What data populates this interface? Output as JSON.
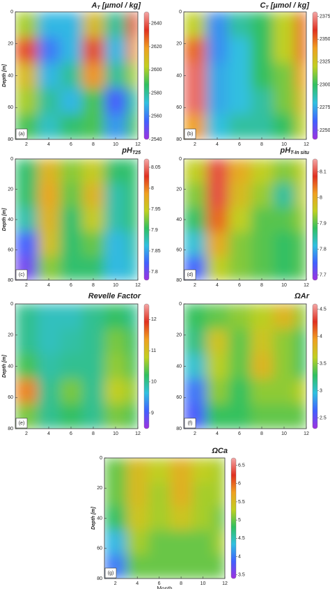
{
  "colormap": [
    "#a030e0",
    "#4060ff",
    "#30c0e0",
    "#30c060",
    "#c0d020",
    "#f0a020",
    "#e03020",
    "#f4a8a8"
  ],
  "chart_data": [
    {
      "type": "contour",
      "title": "A",
      "title_sub": "T",
      "title_rest": " [µmol / kg]",
      "panel_label": "(a)",
      "ylabel": "Depth [m]",
      "xlim": [
        1,
        12
      ],
      "xticks": [
        2,
        4,
        6,
        8,
        10,
        12
      ],
      "ylim": [
        0,
        80
      ],
      "yticks": [
        0,
        20,
        40,
        60,
        80
      ],
      "y_reversed": true,
      "x_edges": [
        1,
        3,
        5,
        7,
        9,
        11,
        12
      ],
      "y_edges": [
        0,
        16,
        32,
        48,
        64,
        80
      ],
      "z": [
        [
          2600,
          2570,
          2570,
          2610,
          2580,
          2630
        ],
        [
          2630,
          2560,
          2570,
          2630,
          2570,
          2620
        ],
        [
          2610,
          2570,
          2580,
          2620,
          2580,
          2600
        ],
        [
          2600,
          2580,
          2570,
          2590,
          2555,
          2580
        ],
        [
          2590,
          2575,
          2585,
          2590,
          2565,
          2590
        ]
      ],
      "colorbar_lim": [
        2540,
        2650
      ],
      "colorbar_ticks": [
        2540,
        2560,
        2580,
        2600,
        2620,
        2640
      ]
    },
    {
      "type": "contour",
      "title": "C",
      "title_sub": "T",
      "title_rest": " [µmol / kg]",
      "panel_label": "(b)",
      "xlim": [
        1,
        12
      ],
      "xticks": [
        2,
        4,
        6,
        8,
        10,
        12
      ],
      "ylim": [
        0,
        80
      ],
      "yticks": [
        0,
        20,
        40,
        60,
        80
      ],
      "y_reversed": true,
      "x_edges": [
        1,
        3,
        5,
        7,
        9,
        11,
        12
      ],
      "y_edges": [
        0,
        16,
        32,
        48,
        64,
        80
      ],
      "z": [
        [
          2320,
          2270,
          2290,
          2300,
          2320,
          2350
        ],
        [
          2350,
          2270,
          2280,
          2300,
          2320,
          2350
        ],
        [
          2370,
          2275,
          2280,
          2300,
          2310,
          2340
        ],
        [
          2370,
          2275,
          2280,
          2290,
          2310,
          2330
        ],
        [
          2340,
          2280,
          2290,
          2290,
          2300,
          2320
        ]
      ],
      "colorbar_lim": [
        2240,
        2380
      ],
      "colorbar_ticks": [
        2250,
        2275,
        2300,
        2325,
        2350,
        2375
      ]
    },
    {
      "type": "contour",
      "title": "pH",
      "title_sub": "T25",
      "panel_label": "(c)",
      "ylabel": "Depth [m]",
      "xlim": [
        1,
        12
      ],
      "xticks": [
        2,
        4,
        6,
        8,
        10,
        12
      ],
      "ylim": [
        0,
        80
      ],
      "yticks": [
        0,
        20,
        40,
        60,
        80
      ],
      "y_reversed": true,
      "x_edges": [
        1,
        3,
        5,
        7,
        9,
        11,
        12
      ],
      "y_edges": [
        0,
        16,
        32,
        48,
        64,
        80
      ],
      "z": [
        [
          7.9,
          7.97,
          7.93,
          7.95,
          7.9,
          7.9
        ],
        [
          7.9,
          7.98,
          7.92,
          7.97,
          7.88,
          7.9
        ],
        [
          7.88,
          7.97,
          7.9,
          7.95,
          7.88,
          7.9
        ],
        [
          7.82,
          7.96,
          7.9,
          7.92,
          7.86,
          7.88
        ],
        [
          7.8,
          7.93,
          7.9,
          7.9,
          7.86,
          7.87
        ]
      ],
      "colorbar_lim": [
        7.78,
        8.07
      ],
      "colorbar_ticks": [
        7.8,
        7.85,
        7.9,
        7.95,
        8,
        8.05
      ]
    },
    {
      "type": "contour",
      "title": "pH",
      "title_sub": "T-In situ",
      "panel_label": "(d)",
      "xlim": [
        1,
        12
      ],
      "xticks": [
        2,
        4,
        6,
        8,
        10,
        12
      ],
      "ylim": [
        0,
        80
      ],
      "yticks": [
        0,
        20,
        40,
        60,
        80
      ],
      "y_reversed": true,
      "x_edges": [
        1,
        3,
        5,
        7,
        9,
        11,
        12
      ],
      "y_edges": [
        0,
        16,
        32,
        48,
        64,
        80
      ],
      "z": [
        [
          7.95,
          8.1,
          8.0,
          7.95,
          7.92,
          7.95
        ],
        [
          7.92,
          8.1,
          7.98,
          7.93,
          7.85,
          7.95
        ],
        [
          7.88,
          8.05,
          7.95,
          7.9,
          7.9,
          7.93
        ],
        [
          7.82,
          8.0,
          7.92,
          7.9,
          7.88,
          7.9
        ],
        [
          7.75,
          7.95,
          7.92,
          7.9,
          7.88,
          7.9
        ]
      ],
      "colorbar_lim": [
        7.68,
        8.15
      ],
      "colorbar_ticks": [
        7.7,
        7.8,
        7.9,
        8,
        8.1
      ]
    },
    {
      "type": "contour",
      "title": "Revelle Factor",
      "panel_label": "(e)",
      "ylabel": "Depth [m]",
      "xlim": [
        1,
        12
      ],
      "xticks": [
        2,
        4,
        6,
        8,
        10,
        12
      ],
      "ylim": [
        0,
        80
      ],
      "yticks": [
        0,
        20,
        40,
        60,
        80
      ],
      "y_reversed": true,
      "x_edges": [
        1,
        3,
        5,
        7,
        9,
        11,
        12
      ],
      "y_edges": [
        0,
        16,
        32,
        48,
        64,
        80
      ],
      "z": [
        [
          10,
          9.8,
          9.8,
          10,
          10.2,
          10
        ],
        [
          10,
          9.8,
          9.9,
          10,
          10.5,
          10.2
        ],
        [
          10.3,
          9.9,
          10,
          10,
          10.6,
          10.3
        ],
        [
          11.5,
          10,
          10.5,
          10,
          10.8,
          10.6
        ],
        [
          10.5,
          10,
          10.2,
          10,
          10.5,
          10.3
        ]
      ],
      "colorbar_lim": [
        8.5,
        12.5
      ],
      "colorbar_ticks": [
        9,
        10,
        11,
        12
      ]
    },
    {
      "type": "contour",
      "title": "ΩAr",
      "panel_label": "(f)",
      "xlim": [
        1,
        12
      ],
      "xticks": [
        2,
        4,
        6,
        8,
        10,
        12
      ],
      "ylim": [
        0,
        80
      ],
      "yticks": [
        0,
        20,
        40,
        60,
        80
      ],
      "y_reversed": true,
      "x_edges": [
        1,
        3,
        5,
        7,
        9,
        11,
        12
      ],
      "y_edges": [
        0,
        16,
        32,
        48,
        64,
        80
      ],
      "z": [
        [
          3.3,
          3.4,
          3.5,
          3.6,
          3.8,
          3.5
        ],
        [
          3.2,
          3.7,
          3.4,
          3.7,
          3.5,
          3.3
        ],
        [
          3,
          3.6,
          3.4,
          3.8,
          3.5,
          3.3
        ],
        [
          2.7,
          3.5,
          3.3,
          3.5,
          3.5,
          3.6
        ],
        [
          2.6,
          3.3,
          3.3,
          3.4,
          3.4,
          3.4
        ]
      ],
      "colorbar_lim": [
        2.3,
        4.6
      ],
      "colorbar_ticks": [
        2.5,
        3,
        3.5,
        4,
        4.5
      ]
    },
    {
      "type": "contour",
      "title": "ΩCa",
      "panel_label": "(g)",
      "ylabel": "Depth [m]",
      "xlabel": "Month",
      "xlim": [
        1,
        12
      ],
      "xticks": [
        2,
        4,
        6,
        8,
        10,
        12
      ],
      "ylim": [
        0,
        80
      ],
      "yticks": [
        0,
        20,
        40,
        60,
        80
      ],
      "y_reversed": true,
      "x_edges": [
        1,
        3,
        5,
        7,
        9,
        11,
        12
      ],
      "y_edges": [
        0,
        16,
        32,
        48,
        64,
        80
      ],
      "z": [
        [
          5,
          5.5,
          5.3,
          5.6,
          5.3,
          5.2
        ],
        [
          5,
          5.5,
          5.2,
          5.6,
          5.2,
          5.2
        ],
        [
          4.8,
          5.4,
          5.2,
          5.4,
          5.2,
          5
        ],
        [
          4.3,
          5.2,
          5,
          5,
          5,
          5.2
        ],
        [
          4,
          5,
          5,
          5,
          5,
          5
        ]
      ],
      "colorbar_lim": [
        3.4,
        6.7
      ],
      "colorbar_ticks": [
        3.5,
        4,
        4.5,
        5,
        5.5,
        6,
        6.5
      ]
    }
  ]
}
